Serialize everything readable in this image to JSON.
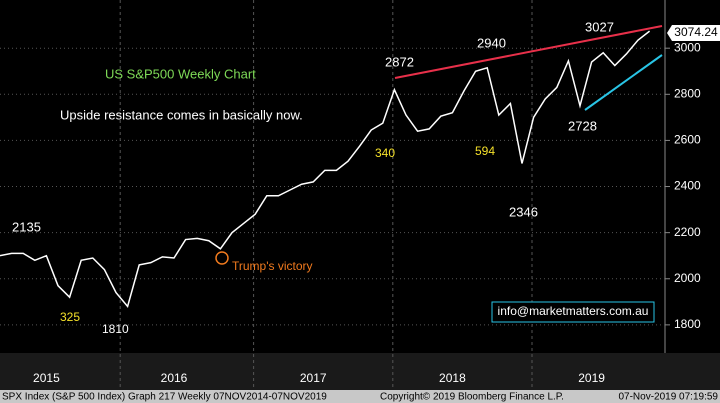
{
  "chart_data": {
    "type": "line",
    "categories": [
      null,
      null,
      null,
      null,
      "2015",
      null,
      null,
      null,
      null,
      null,
      null,
      null,
      null,
      null,
      null,
      "2016",
      null,
      null,
      null,
      null,
      null,
      null,
      null,
      null,
      null,
      null,
      null,
      "2017",
      null,
      null,
      null,
      null,
      null,
      null,
      null,
      null,
      null,
      null,
      null,
      "2018",
      null,
      null,
      null,
      null,
      null,
      null,
      null,
      null,
      null,
      null,
      null,
      "2019",
      null,
      null,
      null,
      null,
      null
    ],
    "series": [
      {
        "name": "SPX Index",
        "color": "#ffffff",
        "values": [
          2100,
          2110,
          2110,
          2080,
          2100,
          1970,
          1920,
          2080,
          2090,
          2040,
          1940,
          1880,
          2060,
          2070,
          2095,
          2090,
          2170,
          2175,
          2165,
          2130,
          2200,
          2240,
          2280,
          2360,
          2360,
          2385,
          2410,
          2420,
          2470,
          2470,
          2510,
          2575,
          2645,
          2675,
          2820,
          2710,
          2640,
          2650,
          2705,
          2720,
          2815,
          2900,
          2915,
          2710,
          2760,
          2500,
          2700,
          2780,
          2830,
          2945,
          2750,
          2940,
          2980,
          2925,
          2975,
          3035,
          3074
        ]
      }
    ],
    "ylim": [
      1678,
      3209
    ],
    "yticks": [
      1800,
      2000,
      2200,
      2400,
      2600,
      2800,
      3000
    ],
    "grid": true,
    "last_price": "3074.24",
    "annotations": [
      "US S&P500 Weekly Chart",
      "Upside resistance comes in basically now.",
      "2135",
      "325",
      "1810",
      "Trump's victory",
      "340",
      "2872",
      "2940",
      "594",
      "2346",
      "3027",
      "2728"
    ],
    "watermark": "info@marketmatters.com.au",
    "footer": [
      "SPX Index (S&P 500 Index) Graph 217  Weekly 07NOV2014-07NOV2019",
      "Copyright© 2019 Bloomberg Finance L.P.",
      "07-Nov-2019 07:19:59"
    ]
  }
}
